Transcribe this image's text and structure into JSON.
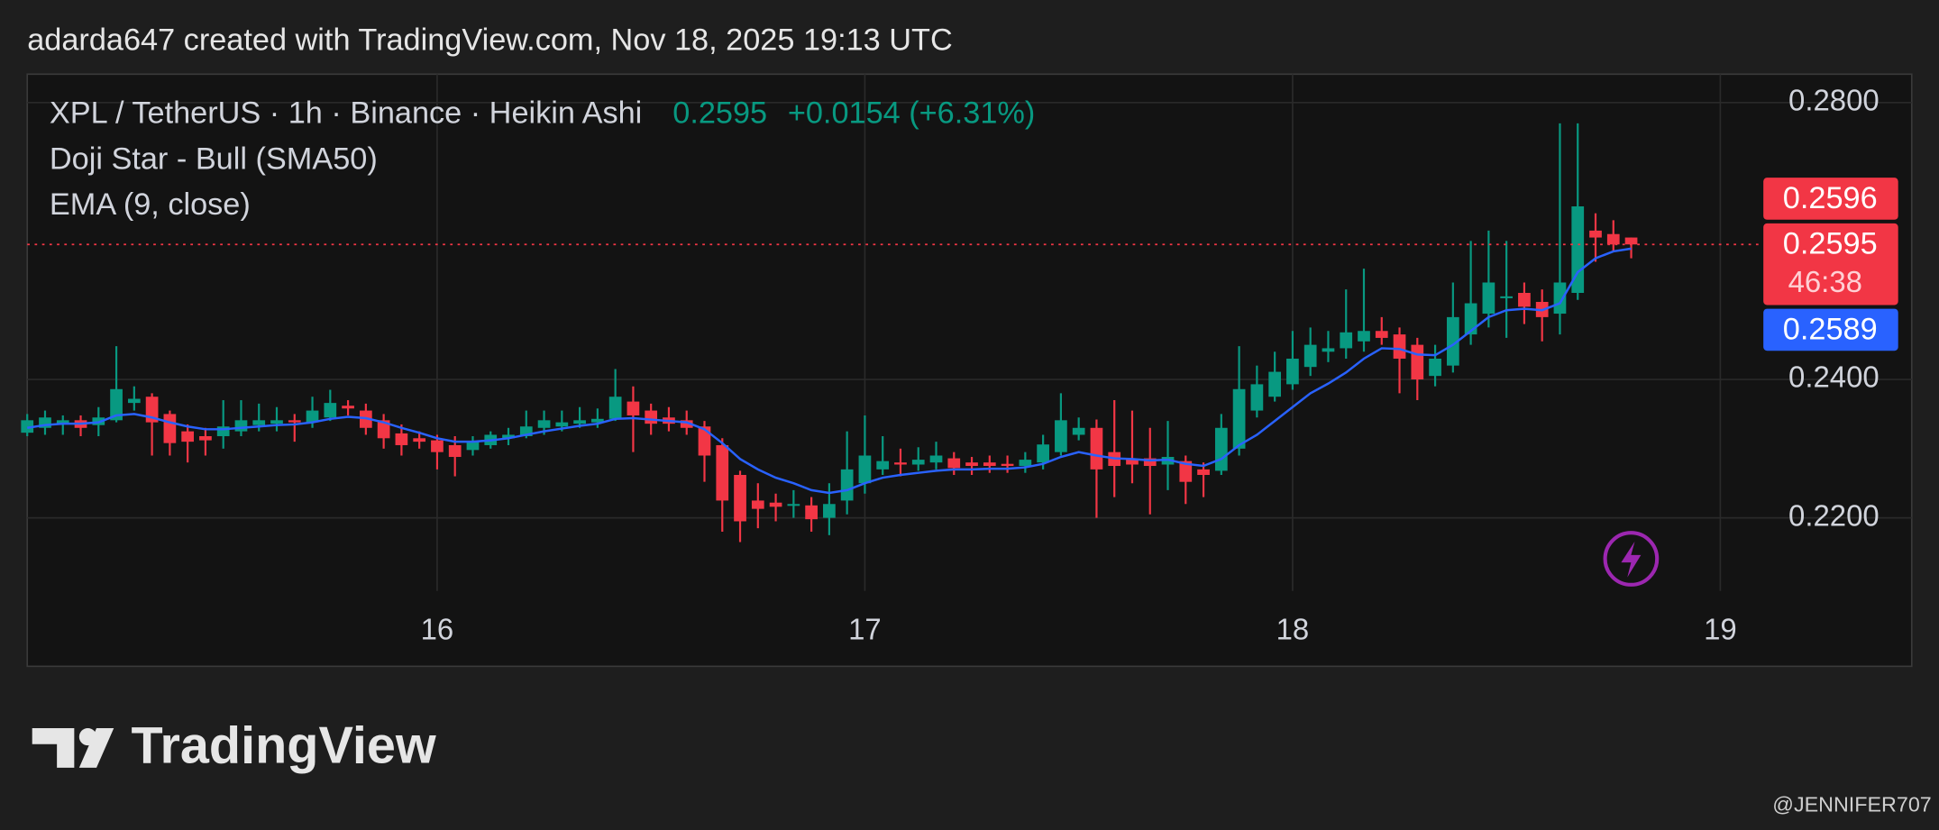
{
  "header": {
    "caption": "adarda647 created with TradingView.com, Nov 18, 2025 19:13 UTC"
  },
  "footer": {
    "logo_text": "TradingView",
    "watermark": "@JENNIFER707"
  },
  "chart_data": {
    "type": "candlestick",
    "symbol": "XPL / TetherUS · 1h · Binance · Heikin Ashi",
    "last_price": "0.2595",
    "change": "+0.0154 (+6.31%)",
    "indicator": "Doji Star - Bull (SMA50)",
    "up_color": "#089981",
    "down_color": "#f23645",
    "xlim": [
      1,
      98
    ],
    "xticks": [
      {
        "value": 24,
        "label": "16"
      },
      {
        "value": 48,
        "label": "17"
      },
      {
        "value": 72,
        "label": "18"
      },
      {
        "value": 96,
        "label": "19"
      }
    ],
    "ylim": [
      0.2073,
      0.2841
    ],
    "yticks": [
      {
        "value": 0.22,
        "label": "0.2200"
      },
      {
        "value": 0.24,
        "label": "0.2400"
      },
      {
        "value": 0.28,
        "label": "0.2800"
      }
    ],
    "grid": true,
    "x": [
      1,
      2,
      3,
      4,
      5,
      6,
      7,
      8,
      9,
      10,
      11,
      12,
      13,
      14,
      15,
      16,
      17,
      18,
      19,
      20,
      21,
      22,
      23,
      24,
      25,
      26,
      27,
      28,
      29,
      30,
      31,
      32,
      33,
      34,
      35,
      36,
      37,
      38,
      39,
      40,
      41,
      42,
      43,
      44,
      45,
      46,
      47,
      48,
      49,
      50,
      51,
      52,
      53,
      54,
      55,
      56,
      57,
      58,
      59,
      60,
      61,
      62,
      63,
      64,
      65,
      66,
      67,
      68,
      69,
      70,
      71,
      72,
      73,
      74,
      75,
      76,
      77,
      78,
      79,
      80,
      81,
      82,
      83,
      84,
      85,
      86,
      87,
      88,
      89,
      90,
      91
    ],
    "candles": [
      [
        0.2323,
        0.235,
        0.2318,
        0.2341
      ],
      [
        0.233,
        0.2355,
        0.232,
        0.2345
      ],
      [
        0.2336,
        0.2348,
        0.232,
        0.2341
      ],
      [
        0.2341,
        0.2348,
        0.2318,
        0.233
      ],
      [
        0.2334,
        0.236,
        0.2318,
        0.2345
      ],
      [
        0.2341,
        0.2448,
        0.2338,
        0.2386
      ],
      [
        0.2366,
        0.239,
        0.2355,
        0.2372
      ],
      [
        0.2375,
        0.238,
        0.229,
        0.2338
      ],
      [
        0.235,
        0.2355,
        0.229,
        0.2308
      ],
      [
        0.2325,
        0.2335,
        0.228,
        0.231
      ],
      [
        0.2318,
        0.233,
        0.229,
        0.2312
      ],
      [
        0.2318,
        0.237,
        0.23,
        0.2332
      ],
      [
        0.2325,
        0.237,
        0.2318,
        0.2341
      ],
      [
        0.2334,
        0.2365,
        0.2325,
        0.2341
      ],
      [
        0.2336,
        0.236,
        0.2325,
        0.2341
      ],
      [
        0.2341,
        0.235,
        0.231,
        0.2338
      ],
      [
        0.2338,
        0.2375,
        0.233,
        0.2355
      ],
      [
        0.2345,
        0.2385,
        0.234,
        0.2366
      ],
      [
        0.2362,
        0.237,
        0.2348,
        0.2358
      ],
      [
        0.2355,
        0.2365,
        0.232,
        0.233
      ],
      [
        0.2341,
        0.235,
        0.23,
        0.2315
      ],
      [
        0.2322,
        0.2335,
        0.229,
        0.2305
      ],
      [
        0.2315,
        0.2325,
        0.23,
        0.231
      ],
      [
        0.2312,
        0.232,
        0.227,
        0.2295
      ],
      [
        0.2305,
        0.2318,
        0.226,
        0.2288
      ],
      [
        0.2298,
        0.2318,
        0.229,
        0.231
      ],
      [
        0.2305,
        0.2325,
        0.23,
        0.232
      ],
      [
        0.2315,
        0.233,
        0.2305,
        0.232
      ],
      [
        0.2318,
        0.2355,
        0.2315,
        0.2332
      ],
      [
        0.233,
        0.2355,
        0.232,
        0.2341
      ],
      [
        0.2332,
        0.2355,
        0.2325,
        0.2338
      ],
      [
        0.2336,
        0.236,
        0.233,
        0.2341
      ],
      [
        0.2338,
        0.2358,
        0.233,
        0.2343
      ],
      [
        0.2343,
        0.2415,
        0.234,
        0.2375
      ],
      [
        0.2368,
        0.239,
        0.2295,
        0.2348
      ],
      [
        0.2355,
        0.2365,
        0.232,
        0.2336
      ],
      [
        0.2345,
        0.236,
        0.2325,
        0.2336
      ],
      [
        0.2341,
        0.2355,
        0.232,
        0.233
      ],
      [
        0.2332,
        0.234,
        0.2252,
        0.229
      ],
      [
        0.2305,
        0.2315,
        0.218,
        0.2225
      ],
      [
        0.2262,
        0.2268,
        0.2165,
        0.2195
      ],
      [
        0.2225,
        0.225,
        0.2185,
        0.2213
      ],
      [
        0.2222,
        0.2235,
        0.2195,
        0.2216
      ],
      [
        0.2218,
        0.224,
        0.22,
        0.222
      ],
      [
        0.2218,
        0.223,
        0.218,
        0.2198
      ],
      [
        0.22,
        0.225,
        0.2175,
        0.222
      ],
      [
        0.2225,
        0.2325,
        0.2205,
        0.227
      ],
      [
        0.225,
        0.2348,
        0.2235,
        0.229
      ],
      [
        0.227,
        0.2318,
        0.2262,
        0.2282
      ],
      [
        0.228,
        0.23,
        0.226,
        0.2277
      ],
      [
        0.2277,
        0.2302,
        0.2268,
        0.2284
      ],
      [
        0.228,
        0.231,
        0.227,
        0.229
      ],
      [
        0.2286,
        0.2295,
        0.2262,
        0.2272
      ],
      [
        0.228,
        0.2288,
        0.2262,
        0.2275
      ],
      [
        0.228,
        0.229,
        0.2265,
        0.2275
      ],
      [
        0.2278,
        0.229,
        0.2265,
        0.2275
      ],
      [
        0.2275,
        0.2295,
        0.2265,
        0.2284
      ],
      [
        0.228,
        0.232,
        0.227,
        0.2306
      ],
      [
        0.2295,
        0.238,
        0.229,
        0.2341
      ],
      [
        0.232,
        0.2345,
        0.2312,
        0.233
      ],
      [
        0.233,
        0.2342,
        0.22,
        0.227
      ],
      [
        0.2295,
        0.237,
        0.223,
        0.2275
      ],
      [
        0.2285,
        0.2355,
        0.225,
        0.2277
      ],
      [
        0.2286,
        0.233,
        0.2205,
        0.2275
      ],
      [
        0.2277,
        0.234,
        0.224,
        0.2288
      ],
      [
        0.2282,
        0.229,
        0.222,
        0.2252
      ],
      [
        0.227,
        0.228,
        0.223,
        0.2262
      ],
      [
        0.2268,
        0.235,
        0.2262,
        0.233
      ],
      [
        0.23,
        0.2448,
        0.229,
        0.2386
      ],
      [
        0.2355,
        0.242,
        0.2345,
        0.2393
      ],
      [
        0.2375,
        0.244,
        0.2368,
        0.2411
      ],
      [
        0.2393,
        0.247,
        0.2385,
        0.243
      ],
      [
        0.2418,
        0.2475,
        0.2405,
        0.245
      ],
      [
        0.244,
        0.247,
        0.2425,
        0.2445
      ],
      [
        0.2445,
        0.253,
        0.243,
        0.2468
      ],
      [
        0.2455,
        0.256,
        0.244,
        0.247
      ],
      [
        0.247,
        0.249,
        0.245,
        0.246
      ],
      [
        0.2465,
        0.2475,
        0.238,
        0.243
      ],
      [
        0.245,
        0.246,
        0.237,
        0.24
      ],
      [
        0.2405,
        0.245,
        0.239,
        0.243
      ],
      [
        0.242,
        0.254,
        0.241,
        0.249
      ],
      [
        0.2465,
        0.26,
        0.245,
        0.251
      ],
      [
        0.2495,
        0.2615,
        0.2475,
        0.254
      ],
      [
        0.2518,
        0.26,
        0.246,
        0.252
      ],
      [
        0.2525,
        0.254,
        0.248,
        0.2505
      ],
      [
        0.2512,
        0.253,
        0.2455,
        0.249
      ],
      [
        0.2495,
        0.277,
        0.2465,
        0.254
      ],
      [
        0.2525,
        0.277,
        0.2515,
        0.265
      ],
      [
        0.2615,
        0.264,
        0.257,
        0.2605
      ],
      [
        0.261,
        0.263,
        0.2585,
        0.2595
      ],
      [
        0.2605,
        0.2605,
        0.2575,
        0.2595
      ]
    ],
    "ema": {
      "name": "EMA (9, close)",
      "color": "#2962ff",
      "values": [
        0.233,
        0.2334,
        0.2336,
        0.2336,
        0.2338,
        0.2348,
        0.235,
        0.2345,
        0.2338,
        0.2332,
        0.2328,
        0.2328,
        0.233,
        0.2332,
        0.2334,
        0.2335,
        0.2338,
        0.2343,
        0.2346,
        0.2344,
        0.2338,
        0.233,
        0.2323,
        0.2315,
        0.231,
        0.231,
        0.2312,
        0.2315,
        0.232,
        0.2325,
        0.2329,
        0.2333,
        0.2336,
        0.2343,
        0.2344,
        0.2342,
        0.234,
        0.2338,
        0.2328,
        0.2308,
        0.2285,
        0.227,
        0.2258,
        0.225,
        0.224,
        0.2236,
        0.224,
        0.225,
        0.2258,
        0.2262,
        0.2265,
        0.2268,
        0.227,
        0.227,
        0.2271,
        0.2271,
        0.2273,
        0.2278,
        0.2288,
        0.2295,
        0.229,
        0.2286,
        0.2285,
        0.2283,
        0.2284,
        0.2278,
        0.2275,
        0.2285,
        0.2305,
        0.232,
        0.234,
        0.236,
        0.238,
        0.2394,
        0.241,
        0.243,
        0.2445,
        0.2444,
        0.2436,
        0.2435,
        0.245,
        0.247,
        0.249,
        0.25,
        0.2502,
        0.25,
        0.251,
        0.2555,
        0.2575,
        0.2585,
        0.2589
      ]
    },
    "price_line": 0.2595,
    "price_labels": [
      {
        "value": 0.2596,
        "color": "#f23645"
      },
      {
        "value": 0.2595,
        "color": "#f23645",
        "countdown": "46:38"
      },
      {
        "value": 0.2589,
        "color": "#2962ff"
      }
    ]
  }
}
